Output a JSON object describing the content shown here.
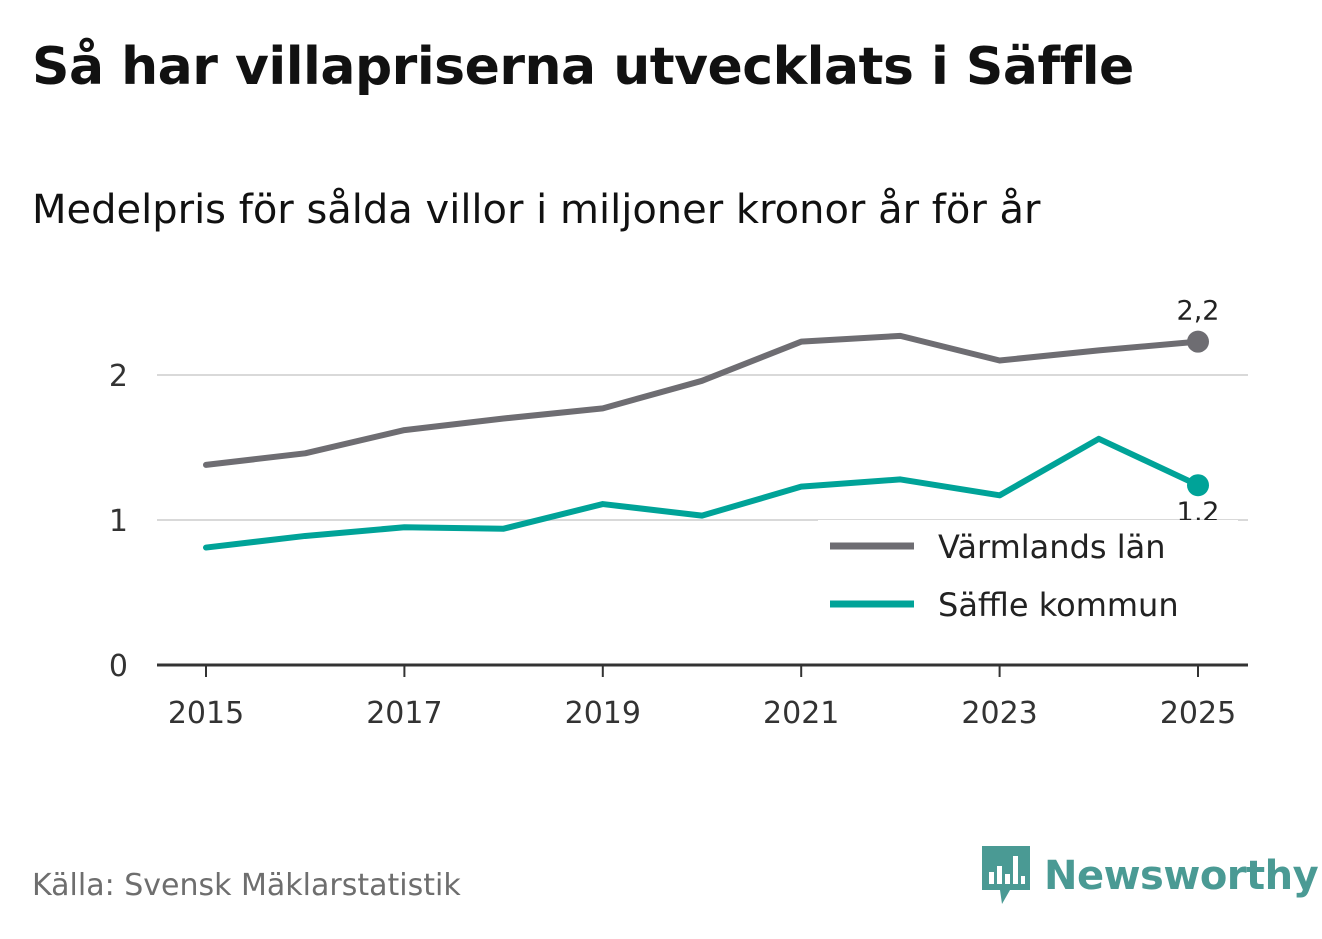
{
  "header": {
    "title": "Så har villapriserna utvecklats i Säffle",
    "subtitle": "Medelpris för sålda villor i miljoner kronor år för år"
  },
  "footer": {
    "source": "Källa: Svensk Mäklarstatistik",
    "brand": "Newsworthy",
    "brand_color": "#4a9a94"
  },
  "chart_data": {
    "type": "line",
    "title": "Så har villapriserna utvecklats i Säffle",
    "subtitle": "Medelpris för sålda villor i miljoner kronor år för år",
    "xlabel": "",
    "ylabel": "",
    "x": [
      2015,
      2016,
      2017,
      2018,
      2019,
      2020,
      2021,
      2022,
      2023,
      2024,
      2025
    ],
    "x_ticks": [
      "2015",
      "2017",
      "2019",
      "2021",
      "2023",
      "2025"
    ],
    "y_ticks": [
      "0",
      "1",
      "2"
    ],
    "xlim": [
      2015,
      2025
    ],
    "ylim": [
      0,
      2.5
    ],
    "grid": true,
    "legend_position": "bottom-right",
    "series": [
      {
        "name": "Värmlands län",
        "color": "#6e6d72",
        "values": [
          1.38,
          1.46,
          1.62,
          1.7,
          1.77,
          1.96,
          2.23,
          2.27,
          2.1,
          2.17,
          2.23
        ],
        "end_label": "2,2"
      },
      {
        "name": "Säffle kommun",
        "color": "#00a398",
        "values": [
          0.81,
          0.89,
          0.95,
          0.94,
          1.11,
          1.03,
          1.23,
          1.28,
          1.17,
          1.56,
          1.24
        ],
        "end_label": "1,2"
      }
    ]
  }
}
